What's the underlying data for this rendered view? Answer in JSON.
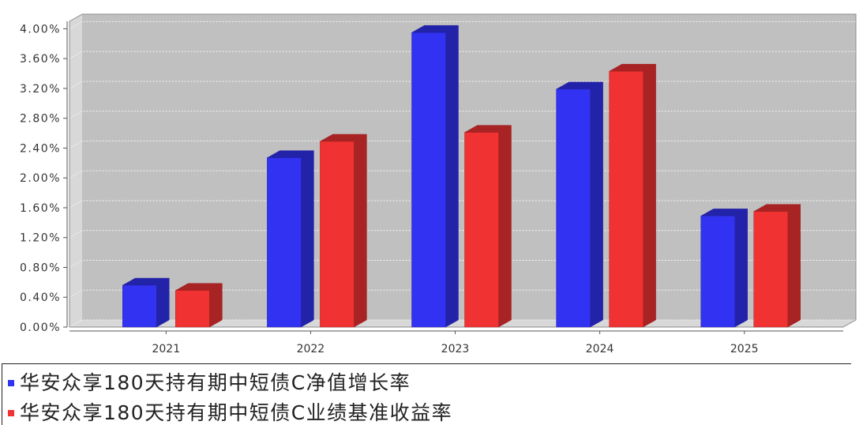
{
  "chart_data": {
    "type": "bar",
    "three_d": true,
    "categories": [
      "2021",
      "2022",
      "2023",
      "2024",
      "2025"
    ],
    "series": [
      {
        "name": "华安众享180天持有期中短债C净值增长率",
        "color": "#3232F2",
        "values": [
          0.56,
          2.27,
          3.95,
          3.19,
          1.49
        ]
      },
      {
        "name": "华安众享180天持有期中短债C业绩基准收益率",
        "color": "#F03232",
        "values": [
          0.49,
          2.49,
          2.61,
          3.43,
          1.55
        ]
      }
    ],
    "ylim": [
      0,
      4.1
    ],
    "yticks": [
      0,
      0.4,
      0.8,
      1.2,
      1.6,
      2.0,
      2.4,
      2.8,
      3.2,
      3.6,
      4.0
    ],
    "ytick_labels": [
      "0.00%",
      "0.40%",
      "0.80%",
      "1.20%",
      "1.60%",
      "2.00%",
      "2.40%",
      "2.80%",
      "3.20%",
      "3.60%",
      "4.00%"
    ],
    "grid": true,
    "legend_position": "bottom",
    "colors": {
      "back_wall": "#C0C0C0",
      "side_walls": "#D8D8D8",
      "gridline": "#F4F4F4",
      "axis": "#555555",
      "outline": "#8A8A8A"
    }
  }
}
